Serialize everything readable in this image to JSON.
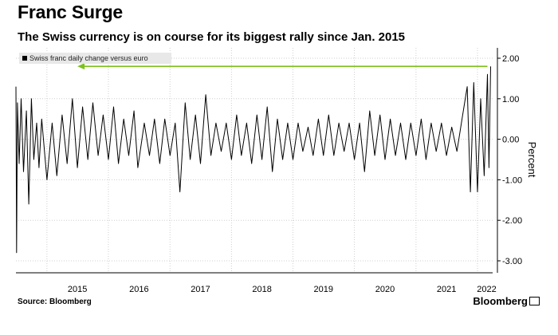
{
  "header": {
    "title": "Franc Surge",
    "subtitle": "The Swiss currency is on course for its biggest rally since Jan. 2015"
  },
  "legend_label": "Swiss franc daily change versus euro",
  "footer": {
    "source": "Source: Bloomberg",
    "brand": "Bloomberg"
  },
  "colors": {
    "series": "#000000",
    "annotation_arrow": "#7dc11d",
    "grid": "#cfcfcf"
  },
  "chart_data": {
    "type": "line",
    "title": "Franc Surge",
    "subtitle": "The Swiss currency is on course for its biggest rally since Jan. 2015",
    "ylabel": "Percent",
    "xlabel": "",
    "ylim": [
      -3.2,
      2.2
    ],
    "y_ticks": [
      "2.00",
      "1.00",
      "0.00",
      "-1.00",
      "-2.00",
      "-3.00"
    ],
    "x_ticks": [
      "2015",
      "2016",
      "2017",
      "2018",
      "2019",
      "2020",
      "2021",
      "2022"
    ],
    "xlim": [
      "2014-07-01",
      "2022-04-01"
    ],
    "grid": true,
    "legend_position": "top-left",
    "series": [
      {
        "name": "Swiss franc daily change versus euro",
        "points": [
          [
            "2014-07-01",
            1.3
          ],
          [
            "2014-07-05",
            -2.8
          ],
          [
            "2014-07-10",
            0.9
          ],
          [
            "2014-07-20",
            -0.6
          ],
          [
            "2014-08-01",
            1.0
          ],
          [
            "2014-08-15",
            -0.8
          ],
          [
            "2014-09-01",
            0.7
          ],
          [
            "2014-09-15",
            -1.6
          ],
          [
            "2014-10-01",
            1.0
          ],
          [
            "2014-10-15",
            -0.5
          ],
          [
            "2014-11-01",
            0.4
          ],
          [
            "2014-11-15",
            -0.7
          ],
          [
            "2014-12-01",
            0.5
          ],
          [
            "2015-01-01",
            -1.0
          ],
          [
            "2015-02-01",
            0.4
          ],
          [
            "2015-03-01",
            -0.9
          ],
          [
            "2015-04-01",
            0.6
          ],
          [
            "2015-05-01",
            -0.6
          ],
          [
            "2015-06-01",
            1.0
          ],
          [
            "2015-07-01",
            -0.7
          ],
          [
            "2015-08-01",
            0.8
          ],
          [
            "2015-09-01",
            -0.5
          ],
          [
            "2015-10-01",
            0.9
          ],
          [
            "2015-11-01",
            -0.4
          ],
          [
            "2015-12-01",
            0.6
          ],
          [
            "2016-01-01",
            -0.5
          ],
          [
            "2016-02-01",
            0.8
          ],
          [
            "2016-03-01",
            -0.6
          ],
          [
            "2016-04-01",
            0.5
          ],
          [
            "2016-05-01",
            -0.4
          ],
          [
            "2016-06-01",
            0.7
          ],
          [
            "2016-06-24",
            -0.7
          ],
          [
            "2016-08-01",
            0.4
          ],
          [
            "2016-09-01",
            -0.4
          ],
          [
            "2016-10-01",
            0.5
          ],
          [
            "2016-11-01",
            -0.6
          ],
          [
            "2016-12-01",
            0.5
          ],
          [
            "2017-01-01",
            -0.4
          ],
          [
            "2017-02-01",
            0.4
          ],
          [
            "2017-03-01",
            -1.3
          ],
          [
            "2017-04-01",
            0.9
          ],
          [
            "2017-05-01",
            -0.5
          ],
          [
            "2017-06-01",
            0.6
          ],
          [
            "2017-07-01",
            -0.6
          ],
          [
            "2017-08-01",
            1.1
          ],
          [
            "2017-09-01",
            -0.4
          ],
          [
            "2017-10-01",
            0.4
          ],
          [
            "2017-11-01",
            -0.3
          ],
          [
            "2017-12-01",
            0.4
          ],
          [
            "2018-01-01",
            -0.5
          ],
          [
            "2018-02-01",
            0.6
          ],
          [
            "2018-03-01",
            -0.4
          ],
          [
            "2018-04-01",
            0.4
          ],
          [
            "2018-05-01",
            -0.6
          ],
          [
            "2018-06-01",
            0.6
          ],
          [
            "2018-07-01",
            -0.5
          ],
          [
            "2018-08-01",
            0.8
          ],
          [
            "2018-09-01",
            -0.8
          ],
          [
            "2018-10-01",
            0.5
          ],
          [
            "2018-11-01",
            -0.5
          ],
          [
            "2018-12-01",
            0.4
          ],
          [
            "2019-01-01",
            -0.5
          ],
          [
            "2019-02-01",
            0.4
          ],
          [
            "2019-03-01",
            -0.3
          ],
          [
            "2019-04-01",
            0.3
          ],
          [
            "2019-05-01",
            -0.4
          ],
          [
            "2019-06-01",
            0.5
          ],
          [
            "2019-07-01",
            -0.4
          ],
          [
            "2019-08-01",
            0.6
          ],
          [
            "2019-09-01",
            -0.4
          ],
          [
            "2019-10-01",
            0.4
          ],
          [
            "2019-11-01",
            -0.3
          ],
          [
            "2019-12-01",
            0.4
          ],
          [
            "2020-01-01",
            -0.5
          ],
          [
            "2020-02-01",
            0.4
          ],
          [
            "2020-03-01",
            -0.8
          ],
          [
            "2020-04-01",
            0.7
          ],
          [
            "2020-05-01",
            -0.4
          ],
          [
            "2020-06-01",
            0.6
          ],
          [
            "2020-07-01",
            -0.5
          ],
          [
            "2020-08-01",
            0.5
          ],
          [
            "2020-09-01",
            -0.4
          ],
          [
            "2020-10-01",
            0.4
          ],
          [
            "2020-11-01",
            -0.5
          ],
          [
            "2020-12-01",
            0.4
          ],
          [
            "2021-01-01",
            -0.4
          ],
          [
            "2021-02-01",
            0.5
          ],
          [
            "2021-03-01",
            -0.5
          ],
          [
            "2021-04-01",
            0.4
          ],
          [
            "2021-05-01",
            -0.3
          ],
          [
            "2021-06-01",
            0.4
          ],
          [
            "2021-07-01",
            -0.4
          ],
          [
            "2021-08-01",
            0.3
          ],
          [
            "2021-09-01",
            -0.3
          ],
          [
            "2021-10-01",
            0.5
          ],
          [
            "2021-11-01",
            1.3
          ],
          [
            "2021-11-20",
            -1.3
          ],
          [
            "2021-12-10",
            1.4
          ],
          [
            "2022-01-01",
            -1.3
          ],
          [
            "2022-01-20",
            1.0
          ],
          [
            "2022-02-10",
            -0.9
          ],
          [
            "2022-03-01",
            1.6
          ],
          [
            "2022-03-10",
            -0.7
          ],
          [
            "2022-03-20",
            1.8
          ]
        ]
      }
    ],
    "annotations": [
      {
        "type": "arrow",
        "direction": "left",
        "y": 1.8,
        "x_from": "2022-03-01",
        "x_to": "2015-07-01"
      }
    ]
  }
}
